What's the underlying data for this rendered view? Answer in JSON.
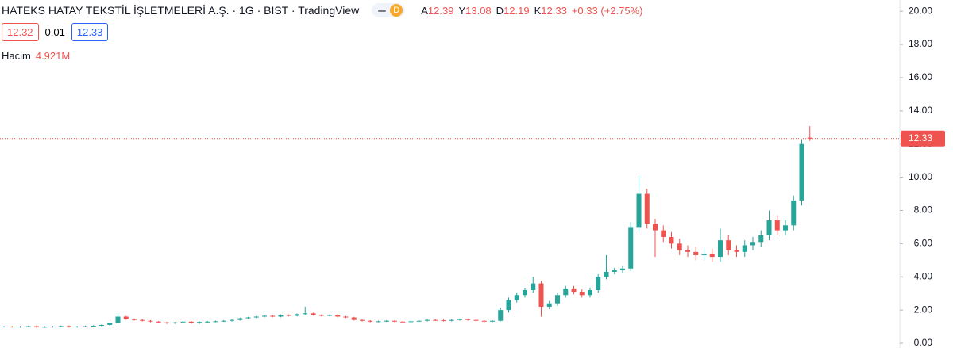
{
  "header": {
    "title": "HATEKS HATAY TEKSTİL İŞLETMELERİ A.Ş. · 1G · BIST · TradingView",
    "badge": "D",
    "ohlc": [
      {
        "key": "A",
        "value": "12.39"
      },
      {
        "key": "Y",
        "value": "13.08"
      },
      {
        "key": "D",
        "value": "12.19"
      },
      {
        "key": "K",
        "value": "12.33"
      }
    ],
    "change": "+0.33 (+2.75%)",
    "bid": "12.32",
    "spread": "0.01",
    "ask": "12.33",
    "volume_label": "Hacim",
    "volume": "4.921M"
  },
  "chart_data": {
    "type": "candlestick",
    "up_color": "#26a69a",
    "down_color": "#ef5350",
    "price_label": "12.33",
    "ylim": [
      0,
      20.2
    ],
    "yticks": [
      {
        "value": 0,
        "label": "0.00"
      },
      {
        "value": 2,
        "label": "2.00"
      },
      {
        "value": 4,
        "label": "4.00"
      },
      {
        "value": 6,
        "label": "6.00"
      },
      {
        "value": 8,
        "label": "8.00"
      },
      {
        "value": 10,
        "label": "10.00"
      },
      {
        "value": 12,
        "label": "12.00"
      },
      {
        "value": 14,
        "label": "14.00"
      },
      {
        "value": 16,
        "label": "16.00"
      },
      {
        "value": 18,
        "label": "18.00"
      },
      {
        "value": 20,
        "label": "20.00"
      }
    ],
    "open": [
      1.0,
      1.0,
      0.98,
      1.0,
      1.02,
      0.97,
      0.99,
      1.0,
      1.03,
      0.98,
      1.0,
      1.02,
      1.05,
      1.1,
      1.2,
      1.6,
      1.45,
      1.4,
      1.35,
      1.3,
      1.25,
      1.2,
      1.25,
      1.3,
      1.2,
      1.28,
      1.3,
      1.32,
      1.35,
      1.4,
      1.5,
      1.55,
      1.6,
      1.65,
      1.6,
      1.7,
      1.65,
      1.75,
      1.8,
      1.7,
      1.65,
      1.7,
      1.6,
      1.55,
      1.4,
      1.35,
      1.3,
      1.32,
      1.35,
      1.3,
      1.28,
      1.32,
      1.35,
      1.4,
      1.38,
      1.35,
      1.4,
      1.45,
      1.4,
      1.35,
      1.3,
      1.35,
      2.0,
      2.6,
      2.9,
      3.2,
      3.6,
      2.2,
      2.4,
      2.9,
      3.3,
      3.1,
      2.9,
      3.2,
      4.0,
      4.3,
      4.4,
      4.5,
      7.0,
      9.0,
      7.2,
      6.8,
      6.4,
      6.0,
      5.6,
      5.5,
      5.3,
      5.4,
      5.2,
      6.2,
      5.6,
      5.5,
      5.9,
      6.1,
      6.5,
      7.4,
      6.8,
      7.1,
      8.6,
      12.39
    ],
    "high": [
      1.04,
      1.04,
      1.04,
      1.06,
      1.06,
      1.03,
      1.04,
      1.07,
      1.07,
      1.04,
      1.06,
      1.09,
      1.14,
      1.24,
      1.8,
      1.64,
      1.49,
      1.44,
      1.39,
      1.34,
      1.29,
      1.29,
      1.34,
      1.34,
      1.32,
      1.34,
      1.36,
      1.39,
      1.44,
      1.54,
      1.59,
      1.64,
      1.69,
      1.69,
      1.74,
      1.74,
      1.79,
      2.2,
      1.84,
      1.74,
      1.74,
      1.74,
      1.64,
      1.59,
      1.44,
      1.39,
      1.36,
      1.39,
      1.39,
      1.34,
      1.36,
      1.39,
      1.44,
      1.44,
      1.42,
      1.44,
      1.49,
      1.49,
      1.44,
      1.39,
      1.39,
      2.15,
      2.75,
      3.05,
      3.35,
      4.0,
      3.75,
      2.55,
      3.05,
      3.45,
      3.45,
      3.25,
      3.35,
      4.15,
      5.3,
      4.55,
      4.65,
      7.3,
      10.1,
      9.3,
      7.5,
      7.1,
      6.7,
      6.3,
      5.9,
      5.8,
      5.7,
      5.7,
      6.9,
      6.5,
      5.9,
      6.2,
      6.4,
      6.8,
      8.0,
      7.7,
      7.4,
      8.9,
      12.3,
      13.08
    ],
    "low": [
      0.96,
      0.94,
      0.94,
      0.96,
      0.93,
      0.93,
      0.95,
      0.96,
      0.94,
      0.94,
      0.96,
      0.98,
      1.01,
      1.06,
      1.16,
      1.41,
      1.36,
      1.31,
      1.26,
      1.21,
      1.16,
      1.16,
      1.21,
      1.16,
      1.16,
      1.24,
      1.26,
      1.28,
      1.31,
      1.36,
      1.46,
      1.51,
      1.56,
      1.56,
      1.56,
      1.61,
      1.61,
      1.71,
      1.66,
      1.61,
      1.61,
      1.56,
      1.51,
      1.36,
      1.31,
      1.26,
      1.26,
      1.28,
      1.26,
      1.24,
      1.24,
      1.28,
      1.31,
      1.34,
      1.31,
      1.31,
      1.36,
      1.36,
      1.31,
      1.26,
      1.26,
      1.31,
      1.85,
      2.45,
      2.75,
      3.05,
      1.6,
      2.05,
      2.25,
      2.75,
      2.95,
      2.75,
      2.75,
      3.05,
      3.85,
      4.15,
      4.25,
      4.35,
      6.7,
      6.9,
      5.2,
      6.1,
      5.7,
      5.3,
      5.2,
      5.0,
      5.0,
      4.9,
      4.9,
      5.3,
      5.2,
      5.2,
      5.6,
      5.8,
      6.2,
      6.5,
      6.5,
      6.8,
      8.3,
      12.19
    ],
    "close": [
      1.0,
      0.98,
      1.0,
      1.02,
      0.97,
      0.99,
      1.0,
      1.03,
      0.98,
      1.0,
      1.02,
      1.05,
      1.1,
      1.2,
      1.6,
      1.45,
      1.4,
      1.35,
      1.3,
      1.25,
      1.2,
      1.25,
      1.3,
      1.2,
      1.28,
      1.3,
      1.32,
      1.35,
      1.4,
      1.5,
      1.55,
      1.6,
      1.65,
      1.6,
      1.7,
      1.65,
      1.75,
      1.8,
      1.7,
      1.65,
      1.7,
      1.6,
      1.55,
      1.4,
      1.35,
      1.3,
      1.32,
      1.35,
      1.3,
      1.28,
      1.32,
      1.35,
      1.4,
      1.38,
      1.35,
      1.4,
      1.45,
      1.4,
      1.35,
      1.3,
      1.35,
      2.0,
      2.6,
      2.9,
      3.2,
      3.6,
      2.2,
      2.4,
      2.9,
      3.3,
      3.1,
      2.9,
      3.2,
      4.0,
      4.3,
      4.4,
      4.5,
      7.0,
      9.0,
      7.2,
      6.8,
      6.4,
      6.0,
      5.6,
      5.5,
      5.3,
      5.4,
      5.2,
      6.2,
      5.6,
      5.5,
      5.9,
      6.1,
      6.5,
      7.4,
      6.8,
      7.1,
      8.6,
      12.0,
      12.33
    ]
  }
}
